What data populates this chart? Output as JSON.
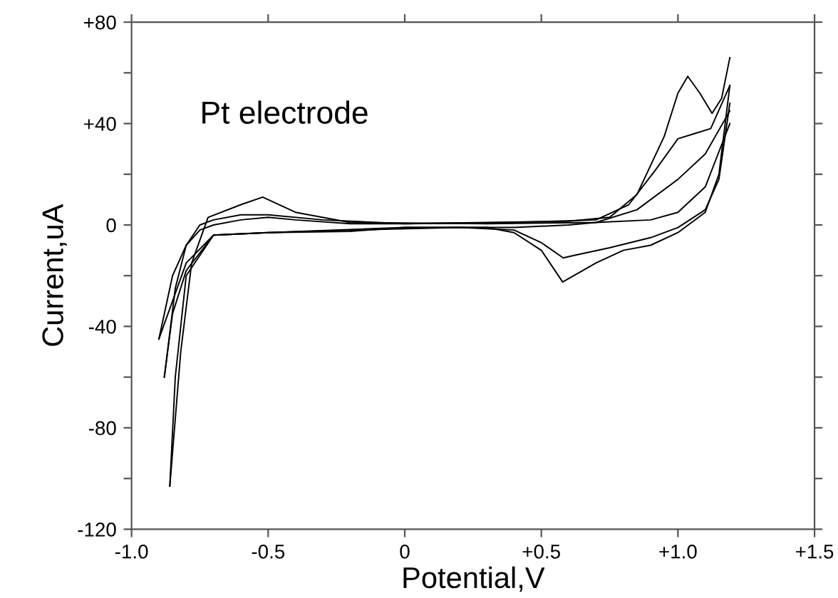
{
  "chart_data": {
    "type": "line",
    "xlabel": "Potential,V",
    "ylabel": "Current,uA",
    "annotations": [
      "Pt electrode"
    ],
    "xlim": [
      -1.0,
      1.5
    ],
    "xticks": [
      {
        "value": -1.0,
        "label": "-1.0"
      },
      {
        "value": -0.5,
        "label": "-0.5"
      },
      {
        "value": 0,
        "label": "0"
      },
      {
        "value": 0.5,
        "label": "+0.5"
      },
      {
        "value": 1.0,
        "label": "+1.0"
      },
      {
        "value": 1.5,
        "label": "+1.5"
      }
    ],
    "ylim": [
      -120,
      80
    ],
    "yticks": [
      {
        "value": -120,
        "label": "-120"
      },
      {
        "value": -100,
        "label": null
      },
      {
        "value": -80,
        "label": "-80"
      },
      {
        "value": -60,
        "label": null
      },
      {
        "value": -40,
        "label": "-40"
      },
      {
        "value": -20,
        "label": null
      },
      {
        "value": 0,
        "label": "0"
      },
      {
        "value": 20,
        "label": null
      },
      {
        "value": 40,
        "label": "+40"
      },
      {
        "value": 60,
        "label": null
      },
      {
        "value": 80,
        "label": "+80"
      }
    ],
    "grid": false,
    "legend": false,
    "marker": "none",
    "line_style": "solid",
    "series": [
      {
        "color": "#000000",
        "x": [
          -0.86,
          -0.82,
          -0.78,
          -0.72,
          -0.6,
          -0.52,
          -0.4,
          -0.2,
          0.3,
          0.7,
          0.85,
          1.0,
          1.1,
          1.19
        ],
        "values": [
          -103,
          -50,
          -15,
          3,
          8,
          11,
          5,
          1,
          0.5,
          1,
          6,
          18,
          28,
          45
        ]
      },
      {
        "color": "#000000",
        "x": [
          1.19,
          1.1,
          1.0,
          0.9,
          0.7,
          0.6,
          0.4,
          0.0,
          -0.5,
          -0.7,
          -0.8,
          -0.84,
          -0.86
        ],
        "values": [
          40,
          15,
          5,
          2,
          1,
          0,
          -1,
          -1,
          -3,
          -4,
          -20,
          -60,
          -103
        ]
      },
      {
        "color": "#000000",
        "x": [
          -0.88,
          -0.84,
          -0.8,
          -0.75,
          -0.7,
          -0.6,
          -0.5,
          -0.3,
          0.0,
          0.4,
          0.7,
          0.82,
          0.92,
          1.0,
          1.06,
          1.12,
          1.19
        ],
        "values": [
          -60,
          -25,
          -8,
          0,
          2,
          4,
          4,
          2,
          0.5,
          1,
          2,
          8,
          22,
          34,
          36,
          38,
          55
        ]
      },
      {
        "color": "#000000",
        "x": [
          1.19,
          1.15,
          1.1,
          1.0,
          0.9,
          0.75,
          0.62,
          0.58,
          0.5,
          0.4,
          0.2,
          -0.2,
          -0.5,
          -0.7,
          -0.8,
          -0.85,
          -0.88
        ],
        "values": [
          48,
          18,
          6,
          -1,
          -5,
          -9,
          -12,
          -13,
          -7,
          -2,
          -1,
          -2,
          -3,
          -4,
          -18,
          -35,
          -60
        ]
      },
      {
        "color": "#000000",
        "x": [
          -0.9,
          -0.85,
          -0.8,
          -0.75,
          -0.7,
          -0.6,
          -0.5,
          -0.4,
          -0.2,
          0.0,
          0.3,
          0.6,
          0.75,
          0.85,
          0.95,
          1.0,
          1.036,
          1.08,
          1.125,
          1.16,
          1.19
        ],
        "values": [
          -45,
          -20,
          -8,
          -2,
          0,
          2,
          3,
          2,
          0.5,
          0.5,
          1,
          1.5,
          3,
          12,
          35,
          52,
          58.6,
          52,
          44,
          50,
          66
        ]
      },
      {
        "color": "#000000",
        "x": [
          1.19,
          1.15,
          1.1,
          1.0,
          0.9,
          0.8,
          0.7,
          0.578,
          0.5,
          0.4,
          0.3,
          0.0,
          -0.2,
          -0.5,
          -0.7,
          -0.8,
          -0.85,
          -0.9
        ],
        "values": [
          55,
          20,
          5,
          -3,
          -8,
          -10,
          -15,
          -22.5,
          -10,
          -3,
          -1,
          -1,
          -2.5,
          -3,
          -4,
          -15,
          -30,
          -45
        ]
      }
    ]
  }
}
